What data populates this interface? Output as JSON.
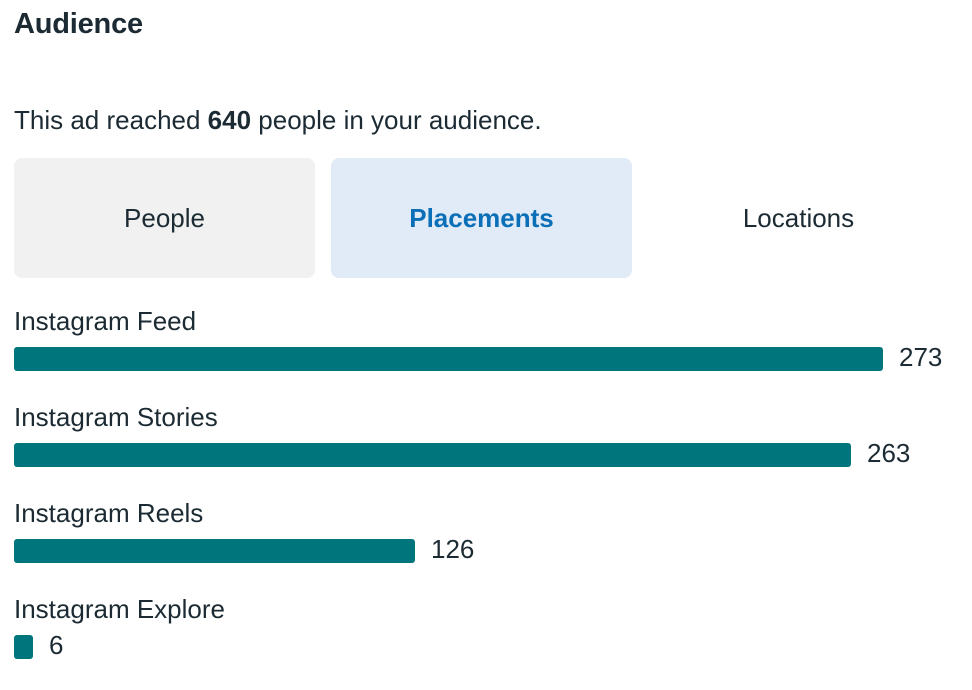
{
  "panel": {
    "title": "Audience"
  },
  "summary": {
    "prefix": "This ad reached ",
    "count": "640",
    "suffix": " people in your audience."
  },
  "tabs": [
    {
      "label": "People",
      "selected": false
    },
    {
      "label": "Placements",
      "selected": true
    },
    {
      "label": "Locations",
      "selected": false
    }
  ],
  "colors": {
    "bar": "#00767c",
    "active_tab_bg": "#e1eaf7",
    "active_tab_text": "#0a6fb7",
    "inactive_tab_bg": "#f1f1f1"
  },
  "placements": [
    {
      "label": "Instagram Feed",
      "value": 273
    },
    {
      "label": "Instagram Stories",
      "value": 263
    },
    {
      "label": "Instagram Reels",
      "value": 126
    },
    {
      "label": "Instagram Explore",
      "value": 6
    }
  ]
}
